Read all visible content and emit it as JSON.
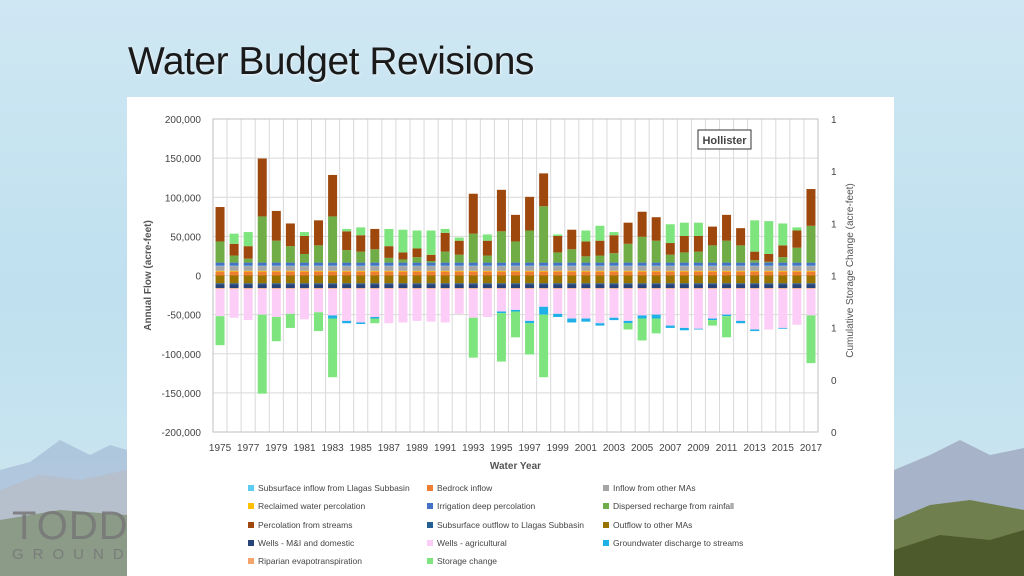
{
  "slide": {
    "title": "Water Budget Revisions",
    "logo_text": [
      "TODD",
      "GROUNDWATER"
    ]
  },
  "chart_data": {
    "type": "bar",
    "stacked": true,
    "annotation": "Hollister",
    "xlabel": "Water Year",
    "ylabel": "Annual Flow (acre-feet)",
    "ylabel_right": "Cumulative Storage Change (acre-feet)",
    "ylim": [
      -200000,
      200000
    ],
    "yticks": [
      "200,000",
      "150,000",
      "100,000",
      "50,000",
      "0",
      "-50,000",
      "-100,000",
      "-150,000",
      "-200,000"
    ],
    "yticks_right": [
      "1",
      "1",
      "1",
      "1",
      "1",
      "0",
      "0"
    ],
    "grid": true,
    "legend_position": "bottom",
    "categories": [
      1975,
      1976,
      1977,
      1978,
      1979,
      1980,
      1981,
      1982,
      1983,
      1984,
      1985,
      1986,
      1987,
      1988,
      1989,
      1990,
      1991,
      1992,
      1993,
      1994,
      1995,
      1996,
      1997,
      1998,
      1999,
      2000,
      2001,
      2002,
      2003,
      2004,
      2005,
      2006,
      2007,
      2008,
      2009,
      2010,
      2011,
      2012,
      2013,
      2014,
      2015,
      2016,
      2017
    ],
    "xtick_labels": [
      "1975",
      "1977",
      "1979",
      "1981",
      "1983",
      "1985",
      "1987",
      "1989",
      "1991",
      "1993",
      "1995",
      "1997",
      "1999",
      "2001",
      "2003",
      "2005",
      "2007",
      "2009",
      "2011",
      "2013",
      "2015",
      "2017"
    ],
    "series": [
      {
        "name": "Subsurface inflow from Llagas Subbasin",
        "color": "#5ccdf0",
        "values": [
          500,
          500,
          500,
          500,
          500,
          500,
          500,
          500,
          500,
          500,
          500,
          500,
          500,
          500,
          500,
          500,
          500,
          500,
          500,
          500,
          500,
          500,
          500,
          500,
          500,
          500,
          500,
          500,
          500,
          500,
          500,
          500,
          500,
          500,
          500,
          500,
          500,
          500,
          500,
          500,
          500,
          500,
          500
        ]
      },
      {
        "name": "Bedrock inflow",
        "color": "#ed7d31",
        "values": [
          5000,
          5000,
          5000,
          5000,
          5000,
          5000,
          5000,
          5000,
          5000,
          5000,
          5000,
          5000,
          5000,
          5000,
          5000,
          5000,
          5000,
          5000,
          5000,
          5000,
          5000,
          5000,
          5000,
          5000,
          5000,
          5000,
          5000,
          5000,
          5000,
          5000,
          5000,
          5000,
          5000,
          5000,
          5000,
          5000,
          5000,
          5000,
          5000,
          5000,
          5000,
          5000,
          5000
        ]
      },
      {
        "name": "Inflow from other MAs",
        "color": "#a5a5a5",
        "values": [
          6000,
          6000,
          6000,
          6000,
          6000,
          6000,
          6000,
          6000,
          6000,
          6000,
          6000,
          6000,
          6000,
          6000,
          6000,
          6000,
          6000,
          6000,
          6000,
          6000,
          6000,
          6000,
          6000,
          6000,
          6000,
          6000,
          6000,
          6000,
          6000,
          6000,
          6000,
          6000,
          6000,
          6000,
          6000,
          6000,
          6000,
          6000,
          6000,
          6000,
          6000,
          6000,
          6000
        ]
      },
      {
        "name": "Reclaimed water percolation",
        "color": "#ffc000",
        "values": [
          1000,
          1000,
          1000,
          1000,
          1000,
          1000,
          1000,
          1000,
          1000,
          1000,
          1000,
          1000,
          1000,
          1000,
          1000,
          1000,
          1000,
          1000,
          1000,
          1000,
          1000,
          1000,
          1000,
          1000,
          1000,
          1000,
          1000,
          1000,
          1000,
          1000,
          1000,
          1000,
          1000,
          1000,
          1000,
          1000,
          1000,
          1000,
          1000,
          1000,
          1000,
          1000,
          1000
        ]
      },
      {
        "name": "Irrigation deep percolation",
        "color": "#4472c4",
        "values": [
          4000,
          4000,
          4000,
          4000,
          4000,
          4000,
          4000,
          4000,
          4000,
          4000,
          4000,
          4000,
          4000,
          4000,
          4000,
          4000,
          4000,
          4000,
          4000,
          4000,
          4000,
          4000,
          4000,
          4000,
          4000,
          4000,
          4000,
          4000,
          4000,
          4000,
          4000,
          4000,
          4000,
          4000,
          4000,
          4000,
          4000,
          4000,
          4000,
          4000,
          4000,
          4000,
          4000
        ]
      },
      {
        "name": "Dispersed recharge from rainfall",
        "color": "#70ad47",
        "values": [
          27000,
          9000,
          5000,
          59000,
          28000,
          21000,
          11000,
          22000,
          59000,
          16000,
          14000,
          17000,
          6000,
          4000,
          7000,
          2000,
          14000,
          10000,
          37000,
          9000,
          40000,
          27000,
          41000,
          72000,
          13000,
          17000,
          8000,
          9000,
          12000,
          24000,
          33000,
          28000,
          10000,
          13000,
          14000,
          22000,
          28000,
          22000,
          3000,
          1000,
          7000,
          19000,
          47000
        ]
      },
      {
        "name": "Percolation from streams",
        "color": "#9e480e",
        "values": [
          44000,
          15000,
          16000,
          74000,
          38000,
          29000,
          23000,
          32000,
          53000,
          24000,
          21000,
          26000,
          15000,
          9000,
          11000,
          8000,
          24000,
          18000,
          51000,
          19000,
          53000,
          34000,
          43000,
          42000,
          21000,
          25000,
          19000,
          19000,
          23000,
          27000,
          32000,
          30000,
          15000,
          21000,
          20000,
          24000,
          33000,
          22000,
          11000,
          10000,
          15000,
          22000,
          47000
        ]
      },
      {
        "name": "Subsurface outflow to Llagas Subbasin",
        "color": "#255e91",
        "values": [
          -1000,
          -1000,
          -1000,
          -1000,
          -1000,
          -1000,
          -1000,
          -1000,
          -1000,
          -1000,
          -1000,
          -1000,
          -1000,
          -1000,
          -1000,
          -1000,
          -1000,
          -1000,
          -1000,
          -1000,
          -1000,
          -1000,
          -1000,
          -1000,
          -1000,
          -1000,
          -1000,
          -1000,
          -1000,
          -1000,
          -1000,
          -1000,
          -1000,
          -1000,
          -1000,
          -1000,
          -1000,
          -1000,
          -1000,
          -1000,
          -1000,
          -1000,
          -1000
        ]
      },
      {
        "name": "Outflow to other MAs",
        "color": "#997300",
        "values": [
          -10000,
          -10000,
          -10000,
          -10000,
          -10000,
          -10000,
          -10000,
          -10000,
          -10000,
          -10000,
          -10000,
          -10000,
          -10000,
          -10000,
          -10000,
          -10000,
          -10000,
          -10000,
          -10000,
          -10000,
          -10000,
          -10000,
          -10000,
          -10000,
          -10000,
          -10000,
          -10000,
          -10000,
          -10000,
          -10000,
          -10000,
          -10000,
          -10000,
          -10000,
          -10000,
          -10000,
          -10000,
          -10000,
          -10000,
          -10000,
          -10000,
          -10000,
          -10000
        ]
      },
      {
        "name": "Wells - M&I and domestic",
        "color": "#264478",
        "values": [
          -5000,
          -5000,
          -5000,
          -5000,
          -5000,
          -5000,
          -5000,
          -5000,
          -5000,
          -5000,
          -5000,
          -5000,
          -5000,
          -5000,
          -5000,
          -5000,
          -5000,
          -5000,
          -5000,
          -5000,
          -5000,
          -5000,
          -5000,
          -5000,
          -5000,
          -5000,
          -5000,
          -5000,
          -5000,
          -5000,
          -5000,
          -5000,
          -5000,
          -5000,
          -5000,
          -5000,
          -5000,
          -5000,
          -5000,
          -5000,
          -5000,
          -5000,
          -5000
        ]
      },
      {
        "name": "Wells - agricultural",
        "color": "#fbcdf7",
        "values": [
          -35000,
          -37000,
          -40000,
          -33000,
          -36000,
          -32000,
          -39000,
          -30000,
          -34000,
          -41000,
          -43000,
          -36000,
          -44000,
          -43000,
          -41000,
          -42000,
          -43000,
          -32000,
          -37000,
          -36000,
          -29000,
          -27000,
          -41000,
          -23000,
          -32000,
          -38000,
          -38000,
          -44000,
          -37000,
          -41000,
          -34000,
          -33000,
          -47000,
          -50000,
          -51000,
          -38000,
          -33000,
          -41000,
          -52000,
          -52000,
          -50000,
          -46000,
          -34000
        ]
      },
      {
        "name": "Groundwater discharge to streams",
        "color": "#1fb0e8",
        "values": [
          0,
          0,
          0,
          0,
          0,
          0,
          0,
          0,
          -4000,
          -3000,
          -2000,
          -2000,
          0,
          0,
          0,
          0,
          0,
          0,
          0,
          0,
          -2000,
          -2000,
          -3000,
          -10000,
          -4000,
          -5000,
          -4000,
          -3000,
          -3000,
          -3000,
          -4000,
          -5000,
          -3000,
          -3000,
          -1000,
          -2000,
          -2000,
          -3000,
          -2000,
          0,
          -1000,
          0,
          0
        ]
      },
      {
        "name": "Riparian evapotranspiration",
        "color": "#f4a46a",
        "values": [
          -1000,
          -1000,
          -1000,
          -1000,
          -1000,
          -1000,
          -1000,
          -1000,
          -1000,
          -1000,
          -1000,
          -1000,
          -1000,
          -1000,
          -1000,
          -1000,
          -1000,
          -1000,
          -1000,
          -1000,
          -1000,
          -1000,
          -1000,
          -1000,
          -1000,
          -1000,
          -1000,
          -1000,
          -1000,
          -1000,
          -1000,
          -1000,
          -1000,
          -1000,
          -1000,
          -1000,
          -1000,
          -1000,
          -1000,
          -1000,
          -1000,
          -1000,
          -1000
        ]
      },
      {
        "name": "Storage change",
        "color": "#7ee57e",
        "values": [
          -37000,
          13000,
          18000,
          -101000,
          -31000,
          -18000,
          5000,
          -24000,
          -75000,
          3000,
          10000,
          -6000,
          22000,
          29000,
          23000,
          31000,
          5000,
          4000,
          -51000,
          8000,
          -62000,
          -33000,
          -40000,
          -80000,
          2000,
          0,
          14000,
          19000,
          4000,
          -8000,
          -28000,
          -19000,
          24000,
          17000,
          17000,
          -7000,
          -27000,
          0,
          40000,
          42000,
          28000,
          4000,
          -61000
        ]
      }
    ]
  }
}
